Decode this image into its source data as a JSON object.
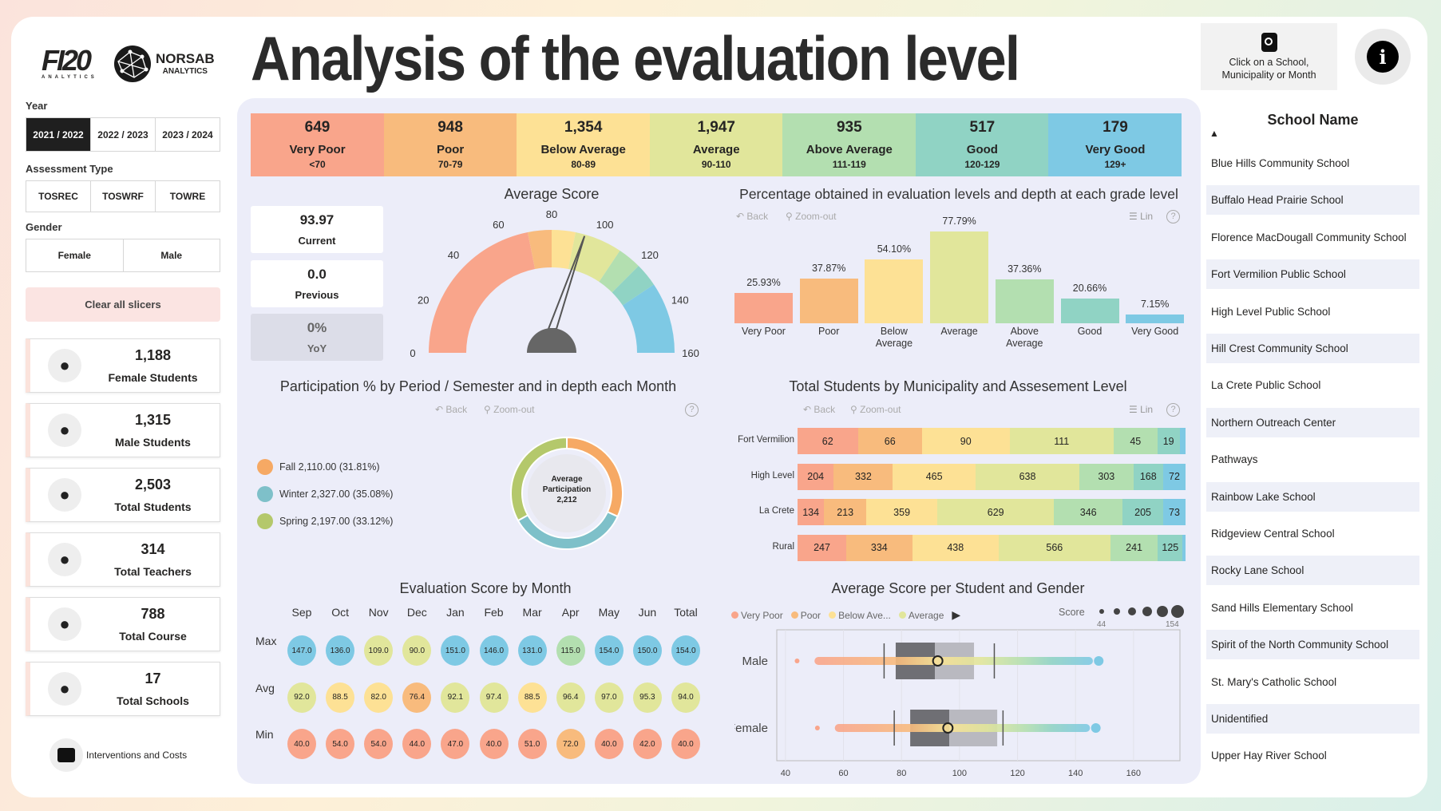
{
  "header": {
    "title": "Analysis of the evaluation level",
    "logo1": "FI20 ANALYTICS",
    "logo2_main": "NORSAB",
    "logo2_sub": "ANALYTICS",
    "hint": "Click on a School, Municipality or Month",
    "info_icon": "info-icon"
  },
  "colors": {
    "very_poor": "#f9a58b",
    "poor": "#f8bb7d",
    "below_average": "#fde195",
    "average": "#e1e69b",
    "above_average": "#b3dfb0",
    "good": "#90d3c4",
    "very_good": "#7ec9e4"
  },
  "filters": {
    "year_label": "Year",
    "years": [
      "2021 / 2022",
      "2022 / 2023",
      "2023 / 2024"
    ],
    "year_selected": 0,
    "assessment_label": "Assessment Type",
    "assessments": [
      "TOSREC",
      "TOSWRF",
      "TOWRE"
    ],
    "gender_label": "Gender",
    "genders": [
      "Female",
      "Male"
    ],
    "clear": "Clear all slicers"
  },
  "stats": [
    {
      "value": "1,188",
      "label": "Female Students",
      "icon": "female-student-icon"
    },
    {
      "value": "1,315",
      "label": "Male Students",
      "icon": "male-student-icon"
    },
    {
      "value": "2,503",
      "label": "Total Students",
      "icon": "graduation-cap-icon"
    },
    {
      "value": "314",
      "label": "Total Teachers",
      "icon": "teachers-icon"
    },
    {
      "value": "788",
      "label": "Total Course",
      "icon": "chart-board-icon"
    },
    {
      "value": "17",
      "label": "Total Schools",
      "icon": "school-icon"
    }
  ],
  "interventions": "Interventions and Costs",
  "levels": [
    {
      "count": "649",
      "name": "Very Poor",
      "range": "<70"
    },
    {
      "count": "948",
      "name": "Poor",
      "range": "70-79"
    },
    {
      "count": "1,354",
      "name": "Below Average",
      "range": "80-89"
    },
    {
      "count": "1,947",
      "name": "Average",
      "range": "90-110"
    },
    {
      "count": "935",
      "name": "Above Average",
      "range": "111-119"
    },
    {
      "count": "517",
      "name": "Good",
      "range": "120-129"
    },
    {
      "count": "179",
      "name": "Very Good",
      "range": "129+"
    }
  ],
  "score_cards": [
    {
      "value": "93.97",
      "label": "Current"
    },
    {
      "value": "0.0",
      "label": "Previous"
    },
    {
      "value": "0%",
      "label": "YoY"
    }
  ],
  "tools": {
    "back": "Back",
    "zoom_out": "Zoom-out",
    "lin": "Lin",
    "help": "?"
  },
  "chart_data": [
    {
      "type": "gauge",
      "title": "Average Score",
      "value": 93.97,
      "min": 0,
      "max": 160,
      "ticks": [
        "0",
        "20",
        "40",
        "60",
        "80",
        "100",
        "120",
        "140",
        "160"
      ],
      "bands": [
        [
          0,
          70
        ],
        [
          70,
          80
        ],
        [
          80,
          90
        ],
        [
          90,
          110
        ],
        [
          110,
          120
        ],
        [
          120,
          130
        ],
        [
          130,
          160
        ]
      ]
    },
    {
      "type": "bar",
      "title": "Percentage obtained in evaluation levels and depth at each grade level",
      "categories": [
        "Very Poor",
        "Poor",
        "Below Average",
        "Average",
        "Above Average",
        "Good",
        "Very Good"
      ],
      "values": [
        25.93,
        37.87,
        54.1,
        77.79,
        37.36,
        20.66,
        7.15
      ],
      "labels": [
        "25.93%",
        "37.87%",
        "54.10%",
        "77.79%",
        "37.36%",
        "20.66%",
        "7.15%"
      ]
    },
    {
      "type": "pie",
      "title": "Participation % by Period / Semester and in depth each Month",
      "center_label": "Average Participation",
      "center_value": "2,212",
      "slices": [
        {
          "name": "Fall",
          "value": 2110,
          "pct": 31.81,
          "label": "Fall 2,110.00 (31.81%)",
          "color": "#f6a964"
        },
        {
          "name": "Winter",
          "value": 2327,
          "pct": 35.08,
          "label": "Winter 2,327.00 (35.08%)",
          "color": "#7ec0c9"
        },
        {
          "name": "Spring",
          "value": 2197,
          "pct": 33.12,
          "label": "Spring 2,197.00 (33.12%)",
          "color": "#b4c86b"
        }
      ]
    },
    {
      "type": "bar",
      "stacked": true,
      "orientation": "horizontal",
      "title": "Total Students by Municipality and Assesement Level",
      "categories": [
        "Fort Vermilion",
        "High Level",
        "La Crete",
        "Rural"
      ],
      "series": [
        {
          "name": "Very Poor",
          "values": [
            62,
            204,
            134,
            247
          ]
        },
        {
          "name": "Poor",
          "values": [
            66,
            332,
            213,
            334
          ]
        },
        {
          "name": "Below Average",
          "values": [
            90,
            465,
            359,
            438
          ]
        },
        {
          "name": "Average",
          "values": [
            111,
            638,
            629,
            566
          ]
        },
        {
          "name": "Above Average",
          "values": [
            45,
            303,
            346,
            241
          ]
        },
        {
          "name": "Good",
          "values": [
            19,
            168,
            205,
            125
          ]
        },
        {
          "name": "Very Good",
          "values": [
            6,
            72,
            73,
            15
          ]
        }
      ]
    },
    {
      "type": "table",
      "title": "Evaluation Score by Month",
      "columns": [
        "Sep",
        "Oct",
        "Nov",
        "Dec",
        "Jan",
        "Feb",
        "Mar",
        "Apr",
        "May",
        "Jun",
        "Total"
      ],
      "rows": [
        {
          "name": "Max",
          "values": [
            147.0,
            136.0,
            109.0,
            90.0,
            151.0,
            146.0,
            131.0,
            115.0,
            154.0,
            150.0,
            154.0
          ],
          "labels": [
            "147.0",
            "136.0",
            "109.0",
            "90.0",
            "151.0",
            "146.0",
            "131.0",
            "115.0",
            "154.0",
            "150.0",
            "154.0"
          ]
        },
        {
          "name": "Avg",
          "values": [
            92.0,
            88.5,
            82.0,
            76.4,
            92.1,
            97.4,
            88.5,
            96.4,
            97.0,
            95.3,
            94.0
          ],
          "labels": [
            "92.0",
            "88.5",
            "82.0",
            "76.4",
            "92.1",
            "97.4",
            "88.5",
            "96.4",
            "97.0",
            "95.3",
            "94.0"
          ]
        },
        {
          "name": "Min",
          "values": [
            40.0,
            54.0,
            54.0,
            44.0,
            47.0,
            40.0,
            51.0,
            72.0,
            40.0,
            42.0,
            40.0
          ],
          "labels": [
            "40.0",
            "54.0",
            "54.0",
            "44.0",
            "47.0",
            "40.0",
            "51.0",
            "72.0",
            "40.0",
            "42.0",
            "40.0"
          ]
        }
      ]
    },
    {
      "type": "boxplot",
      "title": "Average Score per Student and Gender",
      "legend": [
        "Very Poor",
        "Poor",
        "Below Ave...",
        "Average"
      ],
      "size_legend": {
        "label": "Score",
        "min": "44",
        "max": "154"
      },
      "xlim": [
        37,
        176
      ],
      "xticks": [
        "40",
        "60",
        "80",
        "100",
        "120",
        "140",
        "160"
      ],
      "categories": [
        "Male",
        "Female"
      ],
      "boxes": [
        {
          "name": "Male",
          "min": 44,
          "whisker_low": 74,
          "q1": 78,
          "median": 91.5,
          "q3": 105,
          "whisker_high": 112,
          "mean": 92.5,
          "max": 148
        },
        {
          "name": "Female",
          "min": 51,
          "whisker_low": 77.5,
          "q1": 83,
          "median": 96.5,
          "q3": 113,
          "whisker_high": 115,
          "mean": 96,
          "max": 147
        }
      ]
    }
  ],
  "schools": {
    "header": "School Name",
    "items": [
      "Blue Hills Community School",
      "Buffalo Head Prairie School",
      "Florence MacDougall Community School",
      "Fort Vermilion Public School",
      "High Level Public School",
      "Hill Crest Community School",
      "La Crete Public School",
      "Northern Outreach Center",
      "Pathways",
      "Rainbow Lake School",
      "Ridgeview Central School",
      "Rocky Lane School",
      "Sand Hills Elementary School",
      "Spirit of the North Community School",
      "St. Mary's Catholic School",
      "Unidentified",
      "Upper Hay River School"
    ]
  }
}
